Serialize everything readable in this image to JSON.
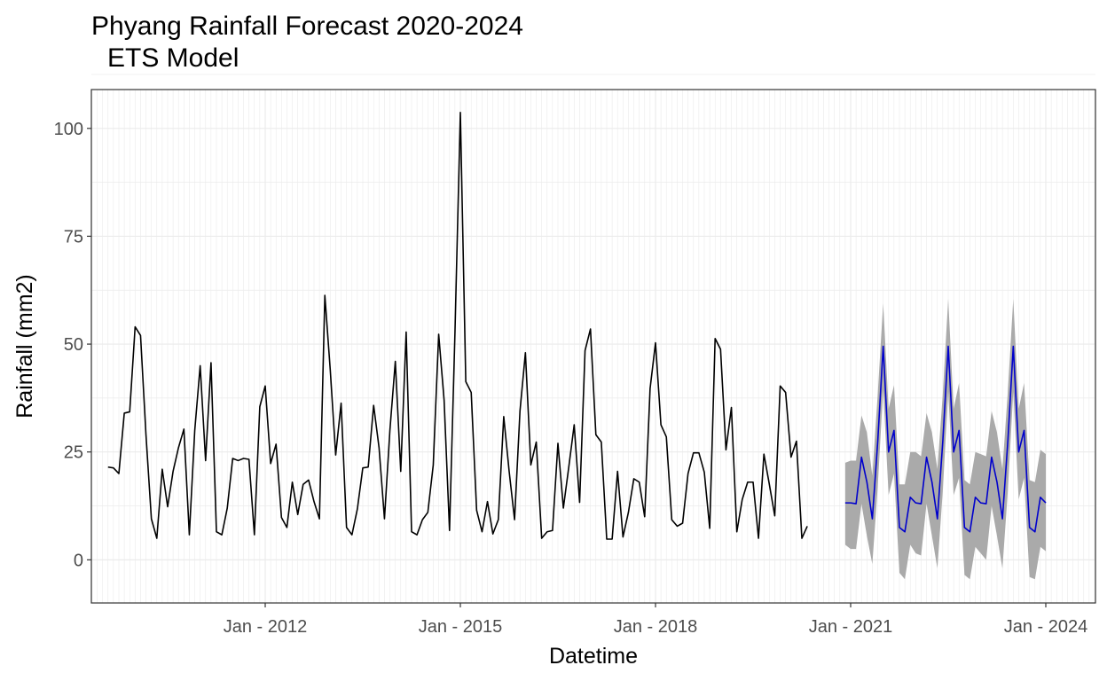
{
  "chart_data": {
    "type": "line",
    "title": "Phyang Rainfall Forecast 2020-2024",
    "subtitle": "ETS Model",
    "xlabel": "Datetime",
    "ylabel": "Rainfall (mm2)",
    "x_ticks": [
      "Jan - 2012",
      "Jan - 2015",
      "Jan - 2018",
      "Jan - 2021",
      "Jan - 2024"
    ],
    "y_ticks": [
      0,
      25,
      50,
      75,
      100
    ],
    "ylim": [
      -10,
      109
    ],
    "grid": true,
    "colors": {
      "observed": "#000000",
      "forecast": "#0000cc",
      "interval": "#aaaaaa",
      "grid": "#ebebeb",
      "panel_border": "#333333"
    },
    "observed": {
      "start": "2009-08",
      "values": [
        21.5,
        21.3,
        20,
        34,
        34.3,
        54,
        52,
        29,
        9.5,
        5,
        21,
        12.3,
        20.5,
        26,
        30.3,
        5.8,
        30,
        45,
        23,
        45.7,
        6.5,
        5.8,
        12,
        23.5,
        23,
        23.5,
        23.3,
        5.8,
        35.5,
        40.3,
        22.3,
        26.8,
        9.8,
        7.5,
        18,
        10.5,
        17.5,
        18.5,
        13.5,
        9.5,
        61.3,
        44,
        24.3,
        36.3,
        7.5,
        5.8,
        11.8,
        21.3,
        21.5,
        35.8,
        26,
        9.5,
        30,
        46,
        20.5,
        52.8,
        6.5,
        5.8,
        9.3,
        11,
        22,
        52.3,
        37,
        6.8,
        52.5,
        103.7,
        41.3,
        38.8,
        11.5,
        6.5,
        13.5,
        6,
        9.3,
        33.2,
        20.5,
        9.3,
        34.5,
        48,
        22,
        27.3,
        5,
        6.5,
        6.8,
        27,
        12,
        21.5,
        31.3,
        13.3,
        48.5,
        53.5,
        29,
        27.3,
        4.8,
        4.8,
        20.5,
        5.3,
        11,
        18.8,
        18,
        10,
        39.7,
        50.3,
        31.3,
        28.5,
        9.3,
        7.8,
        8.5,
        20,
        24.8,
        24.8,
        20.3,
        7.3,
        51.3,
        48.8,
        25.5,
        35.3,
        6.5,
        14,
        18,
        18,
        5,
        24.5,
        17.5,
        10.2,
        40.3,
        38.8,
        23.8,
        27.5,
        5,
        7.8
      ]
    },
    "forecast": {
      "start": "2020-12",
      "values": [
        13.2,
        13.2,
        13,
        23.8,
        18,
        9.5,
        27.5,
        49.5,
        25,
        30,
        7.5,
        6.5,
        14.5,
        13.2,
        13,
        23.8,
        18,
        9.5,
        27.5,
        49.5,
        25,
        30,
        7.5,
        6.5,
        14.5,
        13.2,
        13,
        23.8,
        18,
        9.5,
        27.5,
        49.5,
        25,
        30,
        7.5,
        6.5,
        14.5,
        13.2
      ],
      "lower": [
        3.5,
        2.5,
        2.5,
        13,
        5.5,
        -1,
        17,
        39.5,
        15,
        20,
        -3,
        -4.5,
        3.5,
        1.5,
        1,
        13,
        5.5,
        -2,
        16,
        39,
        15,
        19,
        -3.5,
        -4.5,
        3,
        1.5,
        0,
        12.5,
        5.5,
        -2,
        16,
        39,
        14,
        19,
        -4,
        -4.5,
        3,
        2
      ],
      "upper": [
        22.5,
        23,
        23,
        33.5,
        29.5,
        19.5,
        38.5,
        59.5,
        35,
        40.5,
        17.5,
        17.5,
        25,
        25,
        24,
        34,
        29.5,
        21,
        38.5,
        60.5,
        35,
        41,
        18.5,
        17.5,
        25,
        24.5,
        24,
        34.5,
        29.5,
        21,
        39,
        60.5,
        35,
        41,
        18.5,
        18,
        25.5,
        24.5
      ]
    }
  }
}
